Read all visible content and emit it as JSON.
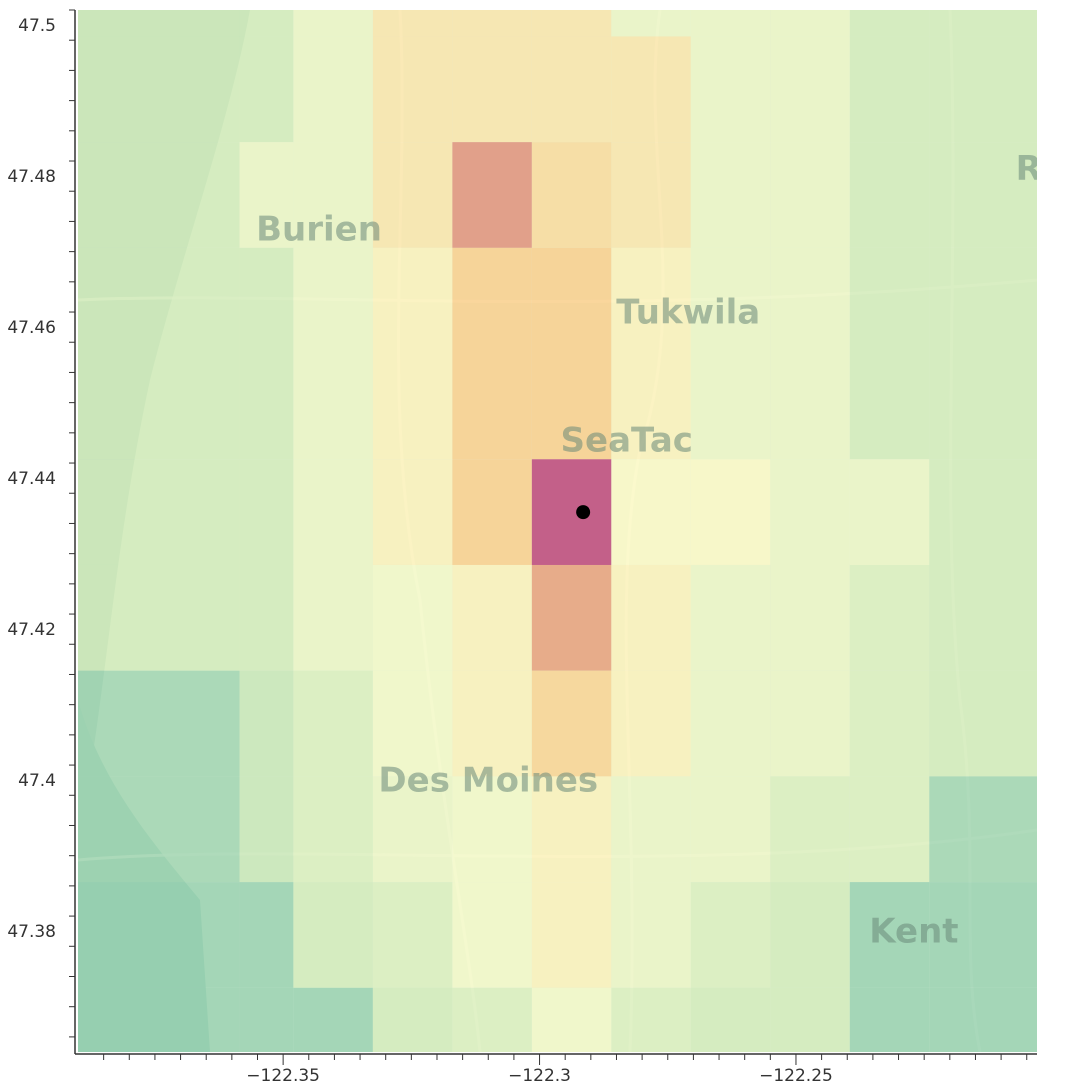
{
  "map": {
    "place_labels": [
      {
        "name": "Burien",
        "lon": -122.343,
        "lat": 47.4715
      },
      {
        "name": "Tukwila",
        "lon": -122.271,
        "lat": 47.4605
      },
      {
        "name": "SeaTac",
        "lon": -122.283,
        "lat": 47.4435
      },
      {
        "name": "Des Moines",
        "lon": -122.31,
        "lat": 47.3985
      },
      {
        "name": "Kent",
        "lon": -122.227,
        "lat": 47.3785
      },
      {
        "name": "Ren",
        "lon": -122.2,
        "lat": 47.4795
      }
    ],
    "marker": {
      "lon": -122.2915,
      "lat": 47.4355,
      "color": "#000000"
    }
  },
  "chart_data": {
    "type": "heatmap",
    "title": "",
    "xlabel": "",
    "ylabel": "",
    "xlim": [
      -122.39,
      -122.203
    ],
    "ylim": [
      47.364,
      47.502
    ],
    "x_ticks": [
      -122.35,
      -122.3,
      -122.25
    ],
    "x_tick_labels": [
      "−122.35",
      "−122.3",
      "−122.25"
    ],
    "y_ticks": [
      47.38,
      47.4,
      47.42,
      47.44,
      47.46,
      47.48,
      47.5
    ],
    "y_tick_labels": [
      "47.38",
      "47.4",
      "47.42",
      "47.44",
      "47.46",
      "47.48",
      "47.5"
    ],
    "colorscale": [
      "#64b9a0",
      "#d2ebb6",
      "#fffec8",
      "#fdbe6f",
      "#b9306c"
    ],
    "x_edges": [
      -122.39,
      -122.3585,
      -122.348,
      -122.3325,
      -122.317,
      -122.3015,
      -122.286,
      -122.2705,
      -122.255,
      -122.2395,
      -122.224,
      -122.203
    ],
    "y_edges": [
      47.502,
      47.4985,
      47.4845,
      47.4705,
      47.4425,
      47.4285,
      47.4145,
      47.4005,
      47.3865,
      47.3725,
      47.364
    ],
    "z": [
      [
        0.25,
        0.25,
        0.4,
        0.6,
        0.6,
        0.6,
        0.4,
        0.4,
        0.4,
        0.25,
        0.25
      ],
      [
        0.25,
        0.25,
        0.4,
        0.6,
        0.6,
        0.6,
        0.6,
        0.4,
        0.4,
        0.25,
        0.25
      ],
      [
        0.25,
        0.4,
        0.4,
        0.6,
        0.85,
        0.65,
        0.6,
        0.4,
        0.4,
        0.25,
        0.25
      ],
      [
        0.25,
        0.25,
        0.4,
        0.55,
        0.7,
        0.7,
        0.55,
        0.4,
        0.4,
        0.25,
        0.25
      ],
      [
        0.25,
        0.25,
        0.4,
        0.55,
        0.7,
        1.0,
        0.52,
        0.52,
        0.4,
        0.4,
        0.25
      ],
      [
        0.25,
        0.25,
        0.4,
        0.45,
        0.55,
        0.82,
        0.55,
        0.4,
        0.4,
        0.3,
        0.25
      ],
      [
        0.12,
        0.22,
        0.3,
        0.45,
        0.55,
        0.68,
        0.55,
        0.4,
        0.4,
        0.3,
        0.25
      ],
      [
        0.12,
        0.22,
        0.3,
        0.4,
        0.45,
        0.55,
        0.4,
        0.4,
        0.3,
        0.3,
        0.12
      ],
      [
        0.1,
        0.1,
        0.25,
        0.3,
        0.45,
        0.55,
        0.4,
        0.3,
        0.25,
        0.1,
        0.1
      ],
      [
        0.1,
        0.1,
        0.1,
        0.25,
        0.3,
        0.45,
        0.3,
        0.25,
        0.25,
        0.1,
        0.1
      ]
    ]
  }
}
